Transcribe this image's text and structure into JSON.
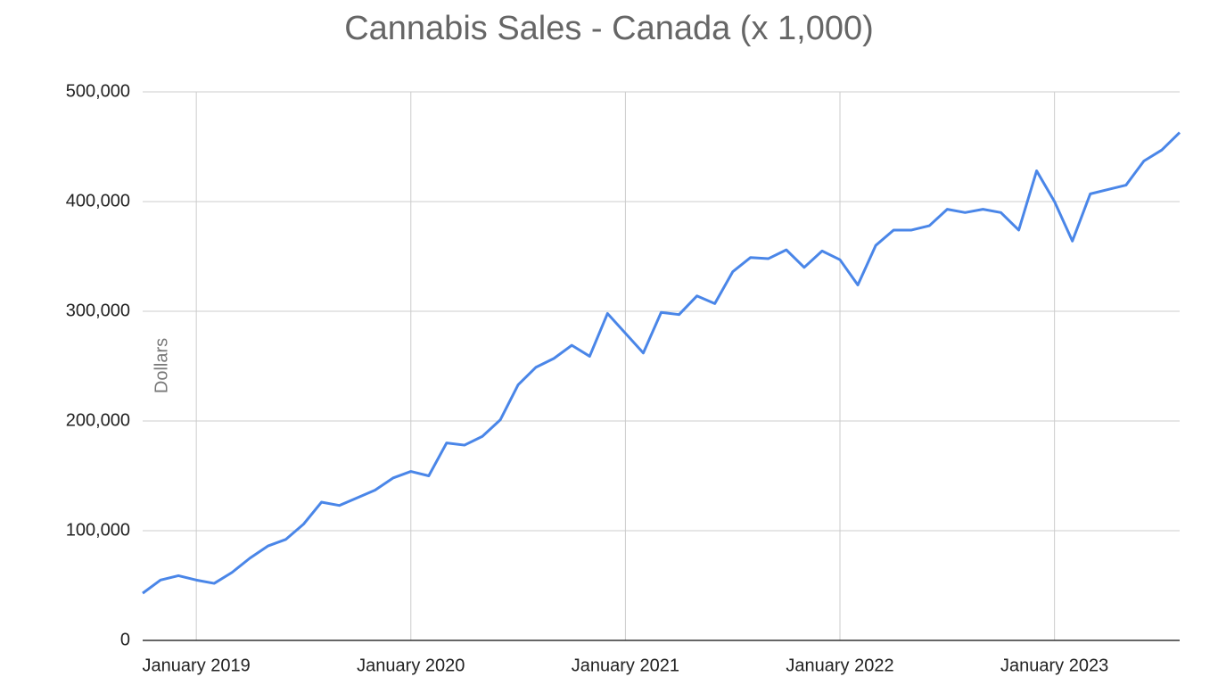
{
  "chart_data": {
    "type": "line",
    "title": "Cannabis Sales - Canada (x 1,000)",
    "y_label": "Dollars",
    "categories": [
      null,
      null,
      null,
      "January 2019",
      null,
      null,
      null,
      null,
      null,
      null,
      null,
      null,
      null,
      null,
      null,
      "January 2020",
      null,
      null,
      null,
      null,
      null,
      null,
      null,
      null,
      null,
      null,
      null,
      "January 2021",
      null,
      null,
      null,
      null,
      null,
      null,
      null,
      null,
      null,
      null,
      null,
      "January 2022",
      null,
      null,
      null,
      null,
      null,
      null,
      null,
      null,
      null,
      null,
      null,
      "January 2023",
      null,
      null,
      null,
      null,
      null,
      null,
      null
    ],
    "series": [
      {
        "name": "Dollars",
        "color": "#4a86e8",
        "values": [
          43000,
          55000,
          59000,
          55000,
          52000,
          62000,
          75000,
          86000,
          92000,
          106000,
          126000,
          123000,
          130000,
          137000,
          148000,
          154000,
          150000,
          180000,
          178000,
          186000,
          201000,
          233000,
          249000,
          257000,
          269000,
          259000,
          298000,
          280000,
          262000,
          299000,
          297000,
          314000,
          307000,
          336000,
          349000,
          348000,
          356000,
          340000,
          355000,
          347000,
          324000,
          360000,
          374000,
          374000,
          378000,
          393000,
          390000,
          393000,
          390000,
          374000,
          428000,
          400000,
          364000,
          407000,
          411000,
          415000,
          437000,
          447000,
          463000
        ]
      }
    ],
    "ylim": [
      0,
      500000
    ],
    "yticks": [
      0,
      {
        "value": 100000,
        "label": "100,000"
      },
      {
        "value": 200000,
        "label": "200,000"
      },
      {
        "value": 300000,
        "label": "300,000"
      },
      {
        "value": 400000,
        "label": "400,000"
      },
      {
        "value": 500000,
        "label": "500,000"
      }
    ],
    "grid": true
  }
}
